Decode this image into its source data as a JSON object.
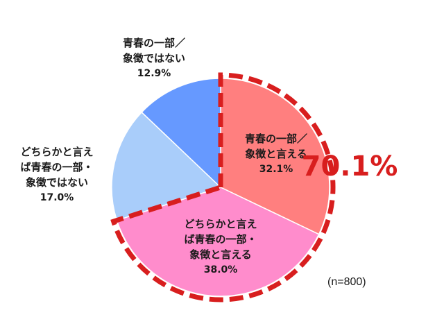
{
  "chart_data": {
    "type": "pie",
    "slices": [
      {
        "label_lines": [
          "青春の一部／",
          "象徴と言える"
        ],
        "value": 32.1,
        "value_label": "32.1%",
        "color": "#ff7f7f"
      },
      {
        "label_lines": [
          "どちらかと言え",
          "ば青春の一部・",
          "象徴と言える"
        ],
        "value": 38.0,
        "value_label": "38.0%",
        "color": "#ff8ccc"
      },
      {
        "label_lines": [
          "どちらかと言え",
          "ば青春の一部・",
          "象徴ではない"
        ],
        "value": 17.0,
        "value_label": "17.0%",
        "color": "#a9cdfa"
      },
      {
        "label_lines": [
          "青春の一部／",
          "象徴ではない"
        ],
        "value": 12.9,
        "value_label": "12.9%",
        "color": "#6699ff"
      }
    ],
    "highlight": {
      "slices": [
        0,
        1
      ],
      "value_label": "70.1%",
      "color": "#d81e1e",
      "style": "dashed"
    },
    "annotation": "(n=800)"
  }
}
